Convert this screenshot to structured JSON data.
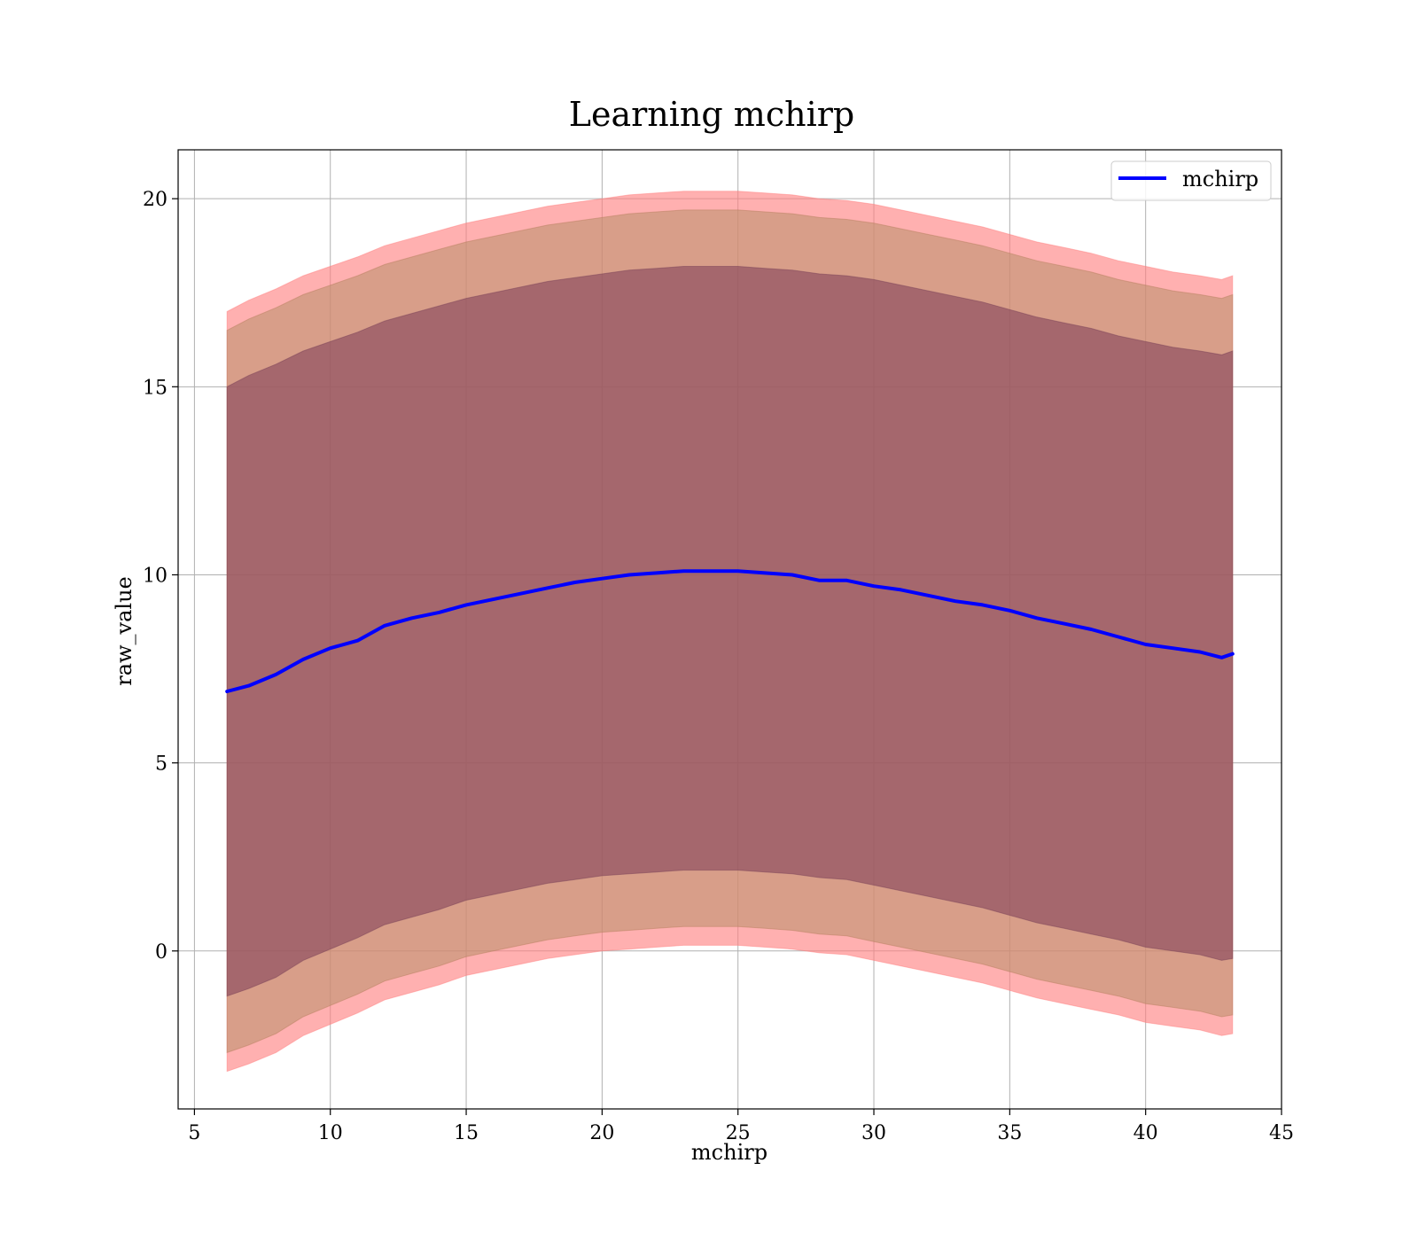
{
  "chart_data": {
    "type": "line",
    "title": "Learning mchirp",
    "xlabel": "mchirp",
    "ylabel": "raw_value",
    "xlim": [
      4.4,
      45
    ],
    "ylim": [
      -4.2,
      21.3
    ],
    "xticks": [
      5,
      10,
      15,
      20,
      25,
      30,
      35,
      40,
      45
    ],
    "yticks": [
      0,
      5,
      10,
      15,
      20
    ],
    "grid": true,
    "legend": {
      "position": "top-right",
      "entries": [
        "mchirp"
      ]
    },
    "colors": {
      "line": "#0000ff",
      "band_outer": "#ffaaaa",
      "band_mid": "#c8957a",
      "band_inner": "#a0707a",
      "grid": "#b0b0b0"
    },
    "x": [
      6.2,
      7,
      8,
      9,
      10,
      11,
      12,
      13,
      14,
      15,
      16,
      17,
      18,
      19,
      20,
      21,
      22,
      23,
      24,
      25,
      26,
      27,
      28,
      29,
      30,
      31,
      32,
      33,
      34,
      35,
      36,
      37,
      38,
      39,
      40,
      41,
      42,
      42.8,
      43.2
    ],
    "series": [
      {
        "name": "mchirp",
        "values": [
          6.9,
          7.05,
          7.35,
          7.75,
          8.05,
          8.25,
          8.65,
          8.85,
          9.0,
          9.2,
          9.35,
          9.5,
          9.65,
          9.8,
          9.9,
          10.0,
          10.05,
          10.1,
          10.1,
          10.1,
          10.05,
          10.0,
          9.85,
          9.85,
          9.7,
          9.6,
          9.45,
          9.3,
          9.2,
          9.05,
          8.85,
          8.7,
          8.55,
          8.35,
          8.15,
          8.05,
          7.95,
          7.8,
          7.9
        ]
      }
    ],
    "bands": [
      {
        "upper": [
          17.0,
          17.3,
          17.6,
          17.95,
          18.2,
          18.45,
          18.75,
          18.95,
          19.15,
          19.35,
          19.5,
          19.65,
          19.8,
          19.9,
          20.0,
          20.1,
          20.15,
          20.2,
          20.2,
          20.2,
          20.15,
          20.1,
          20.0,
          19.95,
          19.85,
          19.7,
          19.55,
          19.4,
          19.25,
          19.05,
          18.85,
          18.7,
          18.55,
          18.35,
          18.2,
          18.05,
          17.95,
          17.85,
          17.95
        ],
        "lower": [
          -3.2,
          -3.0,
          -2.7,
          -2.25,
          -1.95,
          -1.65,
          -1.3,
          -1.1,
          -0.9,
          -0.65,
          -0.5,
          -0.35,
          -0.2,
          -0.1,
          0.0,
          0.05,
          0.1,
          0.15,
          0.15,
          0.15,
          0.1,
          0.05,
          -0.05,
          -0.1,
          -0.25,
          -0.4,
          -0.55,
          -0.7,
          -0.85,
          -1.05,
          -1.25,
          -1.4,
          -1.55,
          -1.7,
          -1.9,
          -2.0,
          -2.1,
          -2.25,
          -2.2
        ]
      },
      {
        "upper": [
          16.5,
          16.8,
          17.1,
          17.45,
          17.7,
          17.95,
          18.25,
          18.45,
          18.65,
          18.85,
          19.0,
          19.15,
          19.3,
          19.4,
          19.5,
          19.6,
          19.65,
          19.7,
          19.7,
          19.7,
          19.65,
          19.6,
          19.5,
          19.45,
          19.35,
          19.2,
          19.05,
          18.9,
          18.75,
          18.55,
          18.35,
          18.2,
          18.05,
          17.85,
          17.7,
          17.55,
          17.45,
          17.35,
          17.45
        ],
        "lower": [
          -2.7,
          -2.5,
          -2.2,
          -1.75,
          -1.45,
          -1.15,
          -0.8,
          -0.6,
          -0.4,
          -0.15,
          0.0,
          0.15,
          0.3,
          0.4,
          0.5,
          0.55,
          0.6,
          0.65,
          0.65,
          0.65,
          0.6,
          0.55,
          0.45,
          0.4,
          0.25,
          0.1,
          -0.05,
          -0.2,
          -0.35,
          -0.55,
          -0.75,
          -0.9,
          -1.05,
          -1.2,
          -1.4,
          -1.5,
          -1.6,
          -1.75,
          -1.7
        ]
      },
      {
        "upper": [
          15.0,
          15.3,
          15.6,
          15.95,
          16.2,
          16.45,
          16.75,
          16.95,
          17.15,
          17.35,
          17.5,
          17.65,
          17.8,
          17.9,
          18.0,
          18.1,
          18.15,
          18.2,
          18.2,
          18.2,
          18.15,
          18.1,
          18.0,
          17.95,
          17.85,
          17.7,
          17.55,
          17.4,
          17.25,
          17.05,
          16.85,
          16.7,
          16.55,
          16.35,
          16.2,
          16.05,
          15.95,
          15.85,
          15.95
        ],
        "lower": [
          -1.2,
          -1.0,
          -0.7,
          -0.25,
          0.05,
          0.35,
          0.7,
          0.9,
          1.1,
          1.35,
          1.5,
          1.65,
          1.8,
          1.9,
          2.0,
          2.05,
          2.1,
          2.15,
          2.15,
          2.15,
          2.1,
          2.05,
          1.95,
          1.9,
          1.75,
          1.6,
          1.45,
          1.3,
          1.15,
          0.95,
          0.75,
          0.6,
          0.45,
          0.3,
          0.1,
          0.0,
          -0.1,
          -0.25,
          -0.2
        ]
      }
    ]
  }
}
